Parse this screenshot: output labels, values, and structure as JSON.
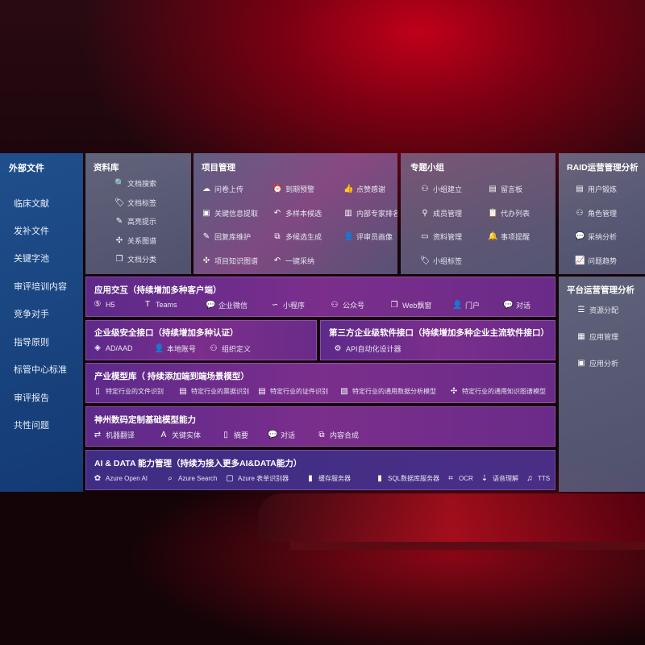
{
  "external": {
    "title": "外部文件",
    "items": [
      "临床文献",
      "发补文件",
      "关键字池",
      "审评培训内容",
      "竞争对手",
      "指导原则",
      "标管中心标准",
      "审评报告",
      "共性问题"
    ]
  },
  "library": {
    "title": "资料库",
    "items": [
      {
        "icon": "doc-search-icon",
        "label": "文档搜索"
      },
      {
        "icon": "tag-icon",
        "label": "文档标签"
      },
      {
        "icon": "pen-icon",
        "label": "高亮提示"
      },
      {
        "icon": "graph-icon",
        "label": "关系图谱"
      },
      {
        "icon": "docs-icon",
        "label": "文档分类"
      }
    ]
  },
  "project": {
    "title": "项目管理",
    "items": [
      {
        "icon": "cloud-upload-icon",
        "label": "问卷上传"
      },
      {
        "icon": "alarm-icon",
        "label": "到期预警"
      },
      {
        "icon": "thumbs-up-icon",
        "label": "点赞感谢"
      },
      {
        "icon": "extract-icon",
        "label": "关键信息提取"
      },
      {
        "icon": "reply-icon",
        "label": "多样本候选"
      },
      {
        "icon": "ranking-icon",
        "label": "内部专家排名"
      },
      {
        "icon": "edit-icon",
        "label": "回复库维护"
      },
      {
        "icon": "puzzle-icon",
        "label": "多候选生成"
      },
      {
        "icon": "user-icon",
        "label": "评审员画像"
      },
      {
        "icon": "knowledge-graph-icon",
        "label": "项目知识图谱"
      },
      {
        "icon": "reply-icon",
        "label": "一键采纳"
      }
    ]
  },
  "group": {
    "title": "专题小组",
    "items": [
      {
        "icon": "group-icon",
        "label": "小组建立"
      },
      {
        "icon": "bbs-icon",
        "label": "留言板"
      },
      {
        "icon": "add-user-icon",
        "label": "成员管理"
      },
      {
        "icon": "clipboard-icon",
        "label": "代办列表"
      },
      {
        "icon": "folder-icon",
        "label": "资料管理"
      },
      {
        "icon": "bell-icon",
        "label": "事项提醒"
      },
      {
        "icon": "tag-icon",
        "label": "小组标签"
      }
    ]
  },
  "raid": {
    "title": "RAID运营管理分析",
    "items": [
      {
        "icon": "id-card-icon",
        "label": "用户锻炼"
      },
      {
        "icon": "users-icon",
        "label": "角色管理"
      },
      {
        "icon": "qa-icon",
        "label": "采纳分析"
      },
      {
        "icon": "trend-icon",
        "label": "问题趋势"
      }
    ]
  },
  "platform": {
    "title": "平台运营管理分析",
    "items": [
      {
        "icon": "list-icon",
        "label": "资源分配"
      },
      {
        "icon": "apps-icon",
        "label": "应用管理"
      },
      {
        "icon": "analysis-icon",
        "label": "应用分析"
      }
    ]
  },
  "app": {
    "title": "应用交互（持续增加多种客户端）",
    "items": [
      {
        "icon": "html5-icon",
        "label": "H5"
      },
      {
        "icon": "teams-icon",
        "label": "Teams"
      },
      {
        "icon": "wechat-work-icon",
        "label": "企业微信"
      },
      {
        "icon": "mini-program-icon",
        "label": "小程序"
      },
      {
        "icon": "official-account-icon",
        "label": "公众号"
      },
      {
        "icon": "window-icon",
        "label": "Web飘窗"
      },
      {
        "icon": "portal-icon",
        "label": "门户"
      },
      {
        "icon": "chat-icon",
        "label": "对话"
      }
    ]
  },
  "security": {
    "title": "企业级安全接口（持续增加多种认证）",
    "items": [
      {
        "icon": "azure-ad-icon",
        "label": "AD/AAD"
      },
      {
        "icon": "local-account-icon",
        "label": "本地账号"
      },
      {
        "icon": "org-icon",
        "label": "组织定义"
      }
    ]
  },
  "thirdparty": {
    "title": "第三方企业级软件接口（持续增加多种企业主流软件接口）",
    "items": [
      {
        "icon": "api-gear-icon",
        "label": "API自动化设计器"
      }
    ]
  },
  "industry": {
    "title": "产业模型库（ 持续添加端到端场景模型）",
    "items": [
      {
        "icon": "file-icon",
        "label": "特定行业的文件识别"
      },
      {
        "icon": "receipt-icon",
        "label": "特定行业的票据识别"
      },
      {
        "icon": "id-card-icon",
        "label": "特定行业的证件识别"
      },
      {
        "icon": "chart-icon",
        "label": "特定行业的通用数据分析模型"
      },
      {
        "icon": "graph-icon",
        "label": "特定行业的通用知识图谱模型"
      }
    ]
  },
  "base": {
    "title": "神州数码定制基础模型能力",
    "items": [
      {
        "icon": "translate-icon",
        "label": "机器翻译"
      },
      {
        "icon": "entity-icon",
        "label": "关键实体"
      },
      {
        "icon": "summary-icon",
        "label": "摘要"
      },
      {
        "icon": "chat-icon",
        "label": "对话"
      },
      {
        "icon": "compose-icon",
        "label": "内容合成"
      }
    ]
  },
  "ai": {
    "title": "AI & DATA 能力管理（持续为接入更多AI&DATA能力）",
    "items": [
      {
        "icon": "openai-icon",
        "label": "Azure Open AI"
      },
      {
        "icon": "search-icon",
        "label": "Azure Search"
      },
      {
        "icon": "form-recognizer-icon",
        "label": "Azure 表单识别器"
      },
      {
        "icon": "cache-icon",
        "label": "缓存服务器"
      },
      {
        "icon": "sql-icon",
        "label": "SQL数据库服务器"
      },
      {
        "icon": "ocr-icon",
        "label": "OCR"
      },
      {
        "icon": "speech-icon",
        "label": "语音理解"
      },
      {
        "icon": "tts-icon",
        "label": "TTS"
      }
    ]
  }
}
